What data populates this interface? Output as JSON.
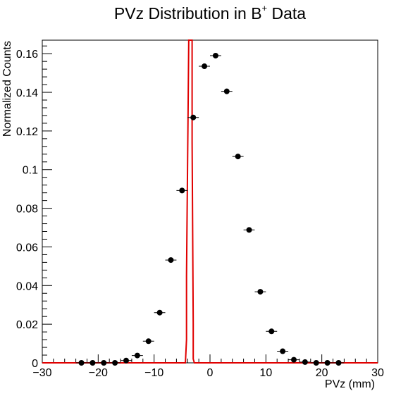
{
  "chart_data": {
    "type": "scatter",
    "title_main": "PVz Distribution in B",
    "title_sup": "+",
    "title_tail": " Data",
    "xlabel": "PVz (mm)",
    "ylabel": "Normalized Counts",
    "xlim": [
      -30,
      30
    ],
    "ylim": [
      0,
      0.167
    ],
    "xticks": [
      -30,
      -20,
      -10,
      0,
      10,
      20,
      30
    ],
    "xtick_labels": [
      "−30",
      "−20",
      "−10",
      "0",
      "10",
      "20",
      "30"
    ],
    "yticks": [
      0,
      0.02,
      0.04,
      0.06,
      0.08,
      0.1,
      0.12,
      0.14,
      0.16
    ],
    "ytick_labels": [
      "0",
      "0.02",
      "0.04",
      "0.06",
      "0.08",
      "0.1",
      "0.12",
      "0.14",
      "0.16"
    ],
    "series": [
      {
        "type": "points_with_xerr",
        "color": "#000000",
        "bin_halfwidth": 1,
        "x": [
          -23,
          -21,
          -19,
          -17,
          -15,
          -13,
          -11,
          -9,
          -7,
          -5,
          -3,
          -1,
          1,
          3,
          5,
          7,
          9,
          11,
          13,
          15,
          17,
          19,
          21,
          23
        ],
        "y": [
          0,
          0,
          0,
          0,
          0.0012,
          0.0038,
          0.0112,
          0.026,
          0.0532,
          0.0892,
          0.127,
          0.1535,
          0.159,
          0.1405,
          0.1068,
          0.0688,
          0.0368,
          0.0163,
          0.006,
          0.0016,
          0.0004,
          0,
          0,
          0
        ]
      },
      {
        "type": "step",
        "color": "#e00000",
        "x": [
          -30,
          -4.4,
          -4.4,
          -4.2,
          -4.2,
          -3.8,
          -3.8,
          -3.6,
          -3.6,
          -3.4,
          -3.4,
          -3.2,
          -3.2,
          -3.0,
          -3.0,
          -2.8,
          -2.8,
          -2.6,
          -2.6,
          30
        ],
        "y": [
          0,
          0,
          0.0,
          0.012,
          0.045,
          0.167,
          0.167,
          0.167,
          0.167,
          0.167,
          0.167,
          0.167,
          0.114,
          0.02,
          0.002,
          0,
          0,
          0,
          0,
          0
        ]
      }
    ]
  }
}
